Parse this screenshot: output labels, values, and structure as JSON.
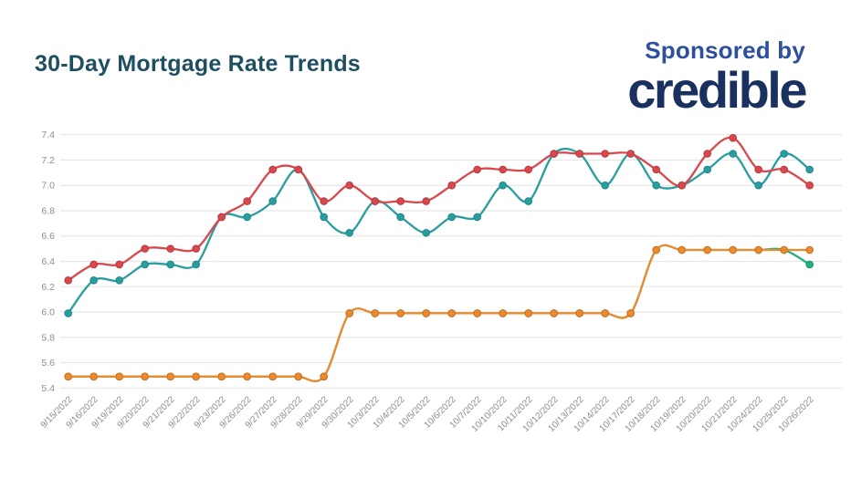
{
  "header": {
    "title": "30-Day Mortgage Rate Trends",
    "sponsored_by": "Sponsored by",
    "sponsor_name": "credible"
  },
  "colors": {
    "title_text": "#1d4f60",
    "sponsored_by_text": "#2d4f9e",
    "credible_navy": "#1a3160",
    "gridline": "#e7e7e7",
    "axis_label": "#8d8d8d",
    "background": "#ffffff"
  },
  "chart_data": {
    "type": "line",
    "title": "30-Day Mortgage Rate Trends",
    "xlabel": "",
    "ylabel": "",
    "legend": "none",
    "grid": "horizontal",
    "ylim": [
      5.4,
      7.4
    ],
    "ytick_labels": [
      "7.4",
      "7.2",
      "7.0",
      "6.8",
      "6.6",
      "6.4",
      "6.2",
      "6.0",
      "5.8",
      "5.6",
      "5.4"
    ],
    "categories": [
      "9/15/2022",
      "9/16/2022",
      "9/19/2022",
      "9/20/2022",
      "9/21/2022",
      "9/22/2022",
      "9/23/2022",
      "9/26/2022",
      "9/27/2022",
      "9/28/2022",
      "9/29/2022",
      "9/30/2022",
      "10/3/2022",
      "10/4/2022",
      "10/5/2022",
      "10/6/2022",
      "10/7/2022",
      "10/10/2022",
      "10/11/2022",
      "10/12/2022",
      "10/13/2022",
      "10/14/2022",
      "10/17/2022",
      "10/18/2022",
      "10/19/2022",
      "10/20/2022",
      "10/21/2022",
      "10/24/2022",
      "10/25/2022",
      "10/26/2022"
    ],
    "series": [
      {
        "name": "series-green",
        "color": "#25b07c",
        "dot_border": "#17965f",
        "values": [
          5.49,
          5.49,
          5.49,
          5.49,
          5.49,
          5.49,
          5.49,
          5.49,
          5.49,
          5.49,
          5.49,
          5.99,
          5.99,
          5.99,
          5.99,
          5.99,
          5.99,
          5.99,
          5.99,
          5.99,
          5.99,
          5.99,
          5.99,
          6.49,
          6.49,
          6.49,
          6.49,
          6.49,
          6.49,
          6.375
        ]
      },
      {
        "name": "series-orange",
        "color": "#ee8a2e",
        "dot_border": "#ca701d",
        "values": [
          5.49,
          5.49,
          5.49,
          5.49,
          5.49,
          5.49,
          5.49,
          5.49,
          5.49,
          5.49,
          5.49,
          5.99,
          5.99,
          5.99,
          5.99,
          5.99,
          5.99,
          5.99,
          5.99,
          5.99,
          5.99,
          5.99,
          5.99,
          6.49,
          6.49,
          6.49,
          6.49,
          6.49,
          6.49,
          6.49
        ]
      },
      {
        "name": "series-teal",
        "color": "#2a9d9f",
        "dot_border": "#1d868c",
        "values": [
          5.99,
          6.25,
          6.25,
          6.375,
          6.375,
          6.375,
          6.75,
          6.75,
          6.875,
          7.125,
          6.75,
          6.625,
          6.875,
          6.75,
          6.625,
          6.75,
          6.75,
          7.0,
          6.875,
          7.25,
          7.25,
          7.0,
          7.25,
          7.0,
          7.0,
          7.125,
          7.25,
          7.0,
          7.25,
          7.125
        ]
      },
      {
        "name": "series-red",
        "color": "#d9484c",
        "dot_border": "#b8383e",
        "values": [
          6.25,
          6.375,
          6.375,
          6.5,
          6.5,
          6.5,
          6.75,
          6.875,
          7.125,
          7.125,
          6.875,
          7.0,
          6.875,
          6.875,
          6.875,
          7.0,
          7.125,
          7.125,
          7.125,
          7.25,
          7.25,
          7.25,
          7.25,
          7.125,
          7.0,
          7.25,
          7.375,
          7.125,
          7.125,
          7.0
        ]
      }
    ]
  }
}
